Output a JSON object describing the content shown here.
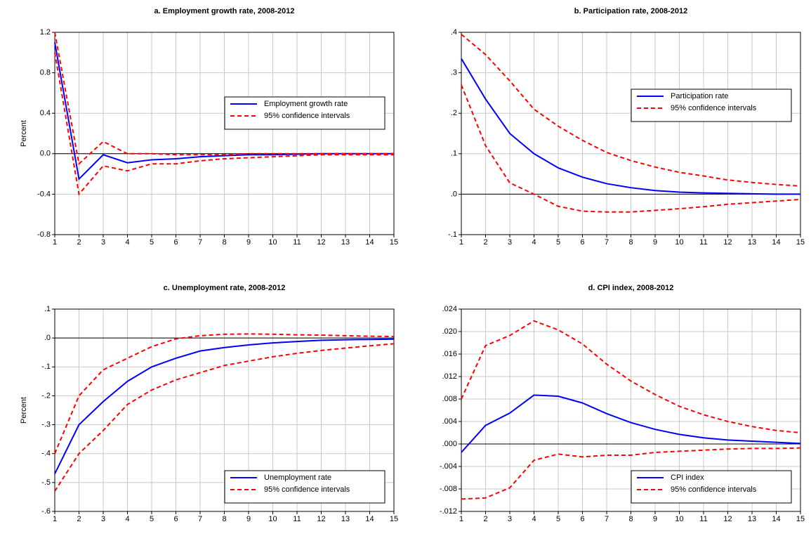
{
  "chart_data": [
    {
      "type": "line",
      "title": "a. Employment growth rate, 2008-2012",
      "y_label": "Percent",
      "x": [
        1,
        2,
        3,
        4,
        5,
        6,
        7,
        8,
        9,
        10,
        11,
        12,
        13,
        14,
        15
      ],
      "xlim": [
        1,
        15
      ],
      "xticks": [
        1,
        2,
        3,
        4,
        5,
        6,
        7,
        8,
        9,
        10,
        11,
        12,
        13,
        14,
        15
      ],
      "ylim": [
        -0.8,
        1.2
      ],
      "yticks": [
        -0.8,
        -0.4,
        {
          "value": 0,
          "label": "0.0"
        },
        0.4,
        0.8,
        1.2
      ],
      "grid": true,
      "zero_line": true,
      "legend": "center right",
      "series": [
        {
          "name": "Employment growth rate",
          "color": "#0000ff",
          "style": "solid",
          "values": [
            1.1,
            -0.25,
            -0.01,
            -0.09,
            -0.06,
            -0.05,
            -0.03,
            -0.02,
            -0.01,
            -0.01,
            -0.005,
            0,
            0,
            0,
            0
          ]
        },
        {
          "name": "95% confidence intervals",
          "color": "#ff0000",
          "style": "dashed",
          "values": [
            1.2,
            -0.1,
            0.12,
            0,
            0,
            -0.01,
            -0.01,
            -0.01,
            0,
            0,
            0,
            0,
            0,
            0,
            0
          ]
        },
        {
          "color": "#ff0000",
          "style": "dashed",
          "values": [
            1.0,
            -0.4,
            -0.12,
            -0.17,
            -0.1,
            -0.1,
            -0.07,
            -0.05,
            -0.04,
            -0.03,
            -0.02,
            -0.01,
            -0.01,
            -0.01,
            -0.01
          ]
        }
      ]
    },
    {
      "type": "line",
      "title": "b. Participation rate, 2008-2012",
      "x": [
        1,
        2,
        3,
        4,
        5,
        6,
        7,
        8,
        9,
        10,
        11,
        12,
        13,
        14,
        15
      ],
      "xlim": [
        1,
        15
      ],
      "xticks": [
        1,
        2,
        3,
        4,
        5,
        6,
        7,
        8,
        9,
        10,
        11,
        12,
        13,
        14,
        15
      ],
      "ylim": [
        -0.1,
        0.4
      ],
      "yticks": [
        {
          "value": -0.1,
          "label": "-.1"
        },
        {
          "value": 0,
          "label": ".0"
        },
        {
          "value": 0.1,
          "label": ".1"
        },
        {
          "value": 0.2,
          "label": ".2"
        },
        {
          "value": 0.3,
          "label": ".3"
        },
        {
          "value": 0.4,
          "label": ".4"
        }
      ],
      "grid": true,
      "zero_line": true,
      "legend": "upper right",
      "series": [
        {
          "name": "Participation rate",
          "color": "#0000ff",
          "style": "solid",
          "values": [
            0.335,
            0.235,
            0.15,
            0.1,
            0.065,
            0.042,
            0.026,
            0.016,
            0.009,
            0.005,
            0.003,
            0.002,
            0.001,
            0,
            0
          ]
        },
        {
          "name": "95% confidence intervals",
          "color": "#ff0000",
          "style": "dashed",
          "values": [
            0.395,
            0.345,
            0.28,
            0.21,
            0.168,
            0.133,
            0.103,
            0.083,
            0.067,
            0.054,
            0.045,
            0.035,
            0.029,
            0.024,
            0.02
          ]
        },
        {
          "color": "#ff0000",
          "style": "dashed",
          "values": [
            0.27,
            0.12,
            0.028,
            0,
            -0.03,
            -0.042,
            -0.044,
            -0.044,
            -0.04,
            -0.036,
            -0.031,
            -0.025,
            -0.021,
            -0.017,
            -0.013
          ]
        }
      ]
    },
    {
      "type": "line",
      "title": "c. Unemployment rate, 2008-2012",
      "y_label": "Percent",
      "x": [
        1,
        2,
        3,
        4,
        5,
        6,
        7,
        8,
        9,
        10,
        11,
        12,
        13,
        14,
        15
      ],
      "xlim": [
        1,
        15
      ],
      "xticks": [
        1,
        2,
        3,
        4,
        5,
        6,
        7,
        8,
        9,
        10,
        11,
        12,
        13,
        14,
        15
      ],
      "ylim": [
        -0.6,
        0.1
      ],
      "yticks": [
        {
          "value": -0.6,
          "label": "-.6"
        },
        {
          "value": -0.5,
          "label": "-.5"
        },
        {
          "value": -0.4,
          "label": "-.4"
        },
        {
          "value": -0.3,
          "label": "-.3"
        },
        {
          "value": -0.2,
          "label": "-.2"
        },
        {
          "value": -0.1,
          "label": "-.1"
        },
        {
          "value": 0,
          "label": ".0"
        },
        {
          "value": 0.1,
          "label": ".1"
        }
      ],
      "grid": true,
      "zero_line": true,
      "legend": "lower right",
      "series": [
        {
          "name": "Unemployment rate",
          "color": "#0000ff",
          "style": "solid",
          "values": [
            -0.47,
            -0.3,
            -0.22,
            -0.15,
            -0.1,
            -0.07,
            -0.045,
            -0.033,
            -0.024,
            -0.017,
            -0.012,
            -0.008,
            -0.006,
            -0.005,
            -0.004
          ]
        },
        {
          "name": "95% confidence intervals",
          "color": "#ff0000",
          "style": "dashed",
          "values": [
            -0.4,
            -0.2,
            -0.11,
            -0.07,
            -0.03,
            -0.003,
            0.008,
            0.013,
            0.014,
            0.013,
            0.011,
            0.01,
            0.008,
            0.006,
            0.005
          ]
        },
        {
          "color": "#ff0000",
          "style": "dashed",
          "values": [
            -0.53,
            -0.4,
            -0.32,
            -0.23,
            -0.18,
            -0.145,
            -0.12,
            -0.095,
            -0.08,
            -0.065,
            -0.053,
            -0.043,
            -0.035,
            -0.027,
            -0.02
          ]
        }
      ]
    },
    {
      "type": "line",
      "title": "d. CPI index, 2008-2012",
      "x": [
        1,
        2,
        3,
        4,
        5,
        6,
        7,
        8,
        9,
        10,
        11,
        12,
        13,
        14,
        15
      ],
      "xlim": [
        1,
        15
      ],
      "xticks": [
        1,
        2,
        3,
        4,
        5,
        6,
        7,
        8,
        9,
        10,
        11,
        12,
        13,
        14,
        15
      ],
      "ylim": [
        -0.012,
        0.024
      ],
      "yticks": [
        {
          "value": -0.012,
          "label": "-.012"
        },
        {
          "value": -0.008,
          "label": "-.008"
        },
        {
          "value": -0.004,
          "label": "-.004"
        },
        {
          "value": 0,
          "label": ".000"
        },
        {
          "value": 0.004,
          "label": ".004"
        },
        {
          "value": 0.008,
          "label": ".008"
        },
        {
          "value": 0.012,
          "label": ".012"
        },
        {
          "value": 0.016,
          "label": ".016"
        },
        {
          "value": 0.02,
          "label": ".020"
        },
        {
          "value": 0.024,
          "label": ".024"
        }
      ],
      "grid": true,
      "zero_line": true,
      "legend": "lower right",
      "series": [
        {
          "name": "CPI index",
          "color": "#0000ff",
          "style": "solid",
          "values": [
            -0.0015,
            0.0033,
            0.0055,
            0.0087,
            0.0085,
            0.0073,
            0.0054,
            0.0038,
            0.0026,
            0.0017,
            0.0011,
            0.0007,
            0.0005,
            0.0003,
            0.0001
          ]
        },
        {
          "name": "95% confidence intervals",
          "color": "#ff0000",
          "style": "dashed",
          "values": [
            0.008,
            0.0175,
            0.0193,
            0.0219,
            0.0203,
            0.0178,
            0.0142,
            0.0112,
            0.0088,
            0.0067,
            0.0052,
            0.004,
            0.0031,
            0.0024,
            0.002
          ]
        },
        {
          "color": "#ff0000",
          "style": "dashed",
          "values": [
            -0.0098,
            -0.0096,
            -0.0078,
            -0.0029,
            -0.0018,
            -0.0023,
            -0.002,
            -0.002,
            -0.0015,
            -0.0013,
            -0.0011,
            -0.0009,
            -0.0008,
            -0.0008,
            -0.0007
          ]
        }
      ]
    }
  ]
}
